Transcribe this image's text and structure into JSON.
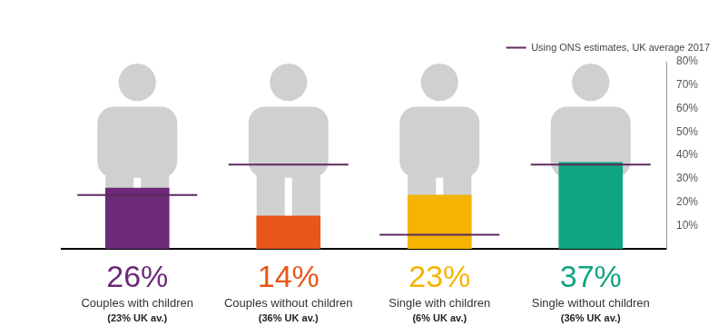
{
  "chart_data": {
    "type": "bar",
    "categories": [
      "Couples with children",
      "Couples without children",
      "Single with children",
      "Single without children"
    ],
    "values": [
      26,
      14,
      23,
      37
    ],
    "value_labels": [
      "26%",
      "14%",
      "23%",
      "37%"
    ],
    "colors": [
      "#6c2a78",
      "#e8561a",
      "#f5b400",
      "#0fa582"
    ],
    "data_labels": true,
    "series": [
      {
        "name": "Using ONS estimates, UK average 2017",
        "type": "line",
        "line_style": "solid",
        "color": "#5e2a63",
        "values": [
          23,
          36,
          6,
          36
        ],
        "value_labels": [
          "(23% UK av.)",
          "(36% UK av.)",
          "(6% UK av.)",
          "(36% UK av.)"
        ]
      }
    ],
    "legend": "top-right",
    "grid": false,
    "ylim": [
      0,
      80
    ],
    "yticks": [
      {
        "value": 10,
        "label": "10%"
      },
      {
        "value": 20,
        "label": "20%"
      },
      {
        "value": 30,
        "label": "30%"
      },
      {
        "value": 40,
        "label": "40%"
      },
      {
        "value": 50,
        "label": "50%"
      },
      {
        "value": 60,
        "label": "60%"
      },
      {
        "value": 70,
        "label": "70%"
      },
      {
        "value": 80,
        "label": "80%"
      }
    ]
  }
}
